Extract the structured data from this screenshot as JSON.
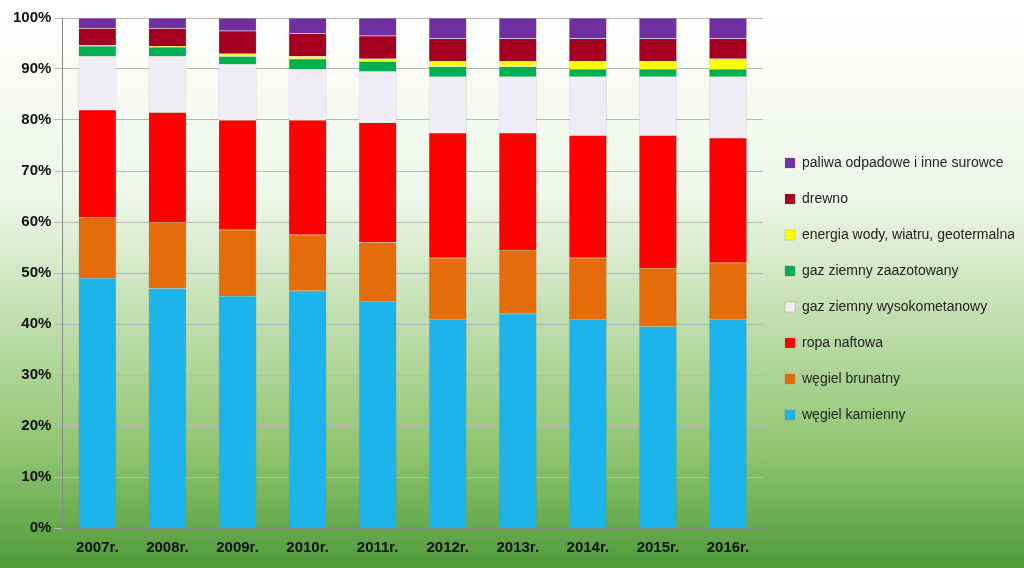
{
  "chart_data": {
    "type": "bar",
    "stacked": true,
    "legend": "right",
    "grid": true,
    "categories": [
      "2007r.",
      "2008r.",
      "2009r.",
      "2010r.",
      "2011r.",
      "2012r.",
      "2013r.",
      "2014r.",
      "2015r.",
      "2016r."
    ],
    "ylim": [
      0,
      100
    ],
    "yticks": [
      {
        "value": 0,
        "label": "0%"
      },
      {
        "value": 10,
        "label": "10%"
      },
      {
        "value": 20,
        "label": "20%"
      },
      {
        "value": 30,
        "label": "30%"
      },
      {
        "value": 40,
        "label": "40%"
      },
      {
        "value": 50,
        "label": "50%"
      },
      {
        "value": 60,
        "label": "60%"
      },
      {
        "value": 70,
        "label": "70%"
      },
      {
        "value": 80,
        "label": "80%"
      },
      {
        "value": 90,
        "label": "90%"
      },
      {
        "value": 100,
        "label": "100%"
      }
    ],
    "series": [
      {
        "name": "węgiel kamienny",
        "color": "#1cb4ea",
        "values": [
          49,
          47,
          45.5,
          46.5,
          44.5,
          41,
          42,
          41,
          39.5,
          41
        ]
      },
      {
        "name": "węgiel brunatny",
        "color": "#e46c0a",
        "values": [
          12,
          13,
          13,
          11,
          11.5,
          12,
          12.5,
          12,
          11.5,
          11
        ]
      },
      {
        "name": "ropa naftowa",
        "color": "#ff0000",
        "values": [
          21,
          21.5,
          21.5,
          22.5,
          23.5,
          24.5,
          23,
          24,
          26,
          24.5
        ]
      },
      {
        "name": "gaz ziemny wysokometanowy",
        "color": "#f1edf4",
        "values": [
          10.5,
          11,
          11,
          10,
          10,
          11,
          11,
          11.5,
          11.5,
          12
        ]
      },
      {
        "name": "gaz ziemny zaazotowany",
        "color": "#00b050",
        "values": [
          2,
          1.8,
          1.5,
          2,
          2,
          2,
          2,
          1.5,
          1.5,
          1.5
        ]
      },
      {
        "name": "energia wody, wiatru, geotermalna i słoneczna",
        "color": "#ffff00",
        "values": [
          0.2,
          0.2,
          0.5,
          0.5,
          0.5,
          1,
          1,
          1.5,
          1.5,
          2
        ]
      },
      {
        "name": "drewno",
        "color": "#a50021",
        "values": [
          3.3,
          3.5,
          4.5,
          4.5,
          4.5,
          4.5,
          4.5,
          4.5,
          4.5,
          4
        ]
      },
      {
        "name": "paliwa odpadowe i inne surowce",
        "color": "#7030a0",
        "values": [
          2,
          2,
          2.5,
          3,
          3.5,
          4,
          4,
          4,
          4,
          4
        ]
      }
    ]
  }
}
